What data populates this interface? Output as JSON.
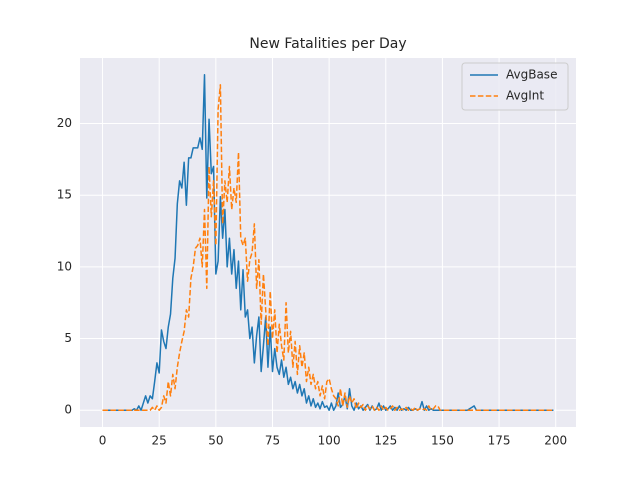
{
  "chart_data": {
    "type": "line",
    "title": "New Fatalities per Day",
    "x": [
      0,
      1,
      2,
      3,
      4,
      5,
      6,
      7,
      8,
      9,
      10,
      11,
      12,
      13,
      14,
      15,
      16,
      17,
      18,
      19,
      20,
      21,
      22,
      23,
      24,
      25,
      26,
      27,
      28,
      29,
      30,
      31,
      32,
      33,
      34,
      35,
      36,
      37,
      38,
      39,
      40,
      41,
      42,
      43,
      44,
      45,
      46,
      47,
      48,
      49,
      50,
      51,
      52,
      53,
      54,
      55,
      56,
      57,
      58,
      59,
      60,
      61,
      62,
      63,
      64,
      65,
      66,
      67,
      68,
      69,
      70,
      71,
      72,
      73,
      74,
      75,
      76,
      77,
      78,
      79,
      80,
      81,
      82,
      83,
      84,
      85,
      86,
      87,
      88,
      89,
      90,
      91,
      92,
      93,
      94,
      95,
      96,
      97,
      98,
      99,
      100,
      101,
      102,
      103,
      104,
      105,
      106,
      107,
      108,
      109,
      110,
      111,
      112,
      113,
      114,
      115,
      116,
      117,
      118,
      119,
      120,
      121,
      122,
      123,
      124,
      125,
      126,
      127,
      128,
      129,
      130,
      131,
      132,
      133,
      134,
      135,
      136,
      137,
      138,
      139,
      140,
      141,
      142,
      143,
      144,
      145,
      146,
      147,
      148,
      149,
      150,
      151,
      152,
      153,
      154,
      155,
      156,
      157,
      158,
      159,
      160,
      161,
      162,
      163,
      164,
      165,
      166,
      167,
      168,
      169,
      170,
      171,
      172,
      173,
      174,
      175,
      176,
      177,
      178,
      179,
      180,
      181,
      182,
      183,
      184,
      185,
      186,
      187,
      188,
      189,
      190,
      191,
      192,
      193,
      194,
      195,
      196,
      197,
      198,
      199
    ],
    "series": [
      {
        "name": "AvgBase",
        "color": "#1f77b4",
        "dash": false,
        "values": [
          0,
          0,
          0,
          0,
          0,
          0,
          0,
          0,
          0,
          0,
          0,
          0,
          0,
          0,
          0.1,
          0,
          0.3,
          0,
          0.5,
          1.0,
          0.5,
          1.0,
          0.8,
          2.0,
          3.3,
          2.6,
          5.6,
          4.8,
          4.3,
          5.8,
          6.7,
          9.2,
          10.6,
          14.4,
          16.0,
          15.5,
          17.3,
          14.3,
          17.6,
          17.6,
          18.3,
          18.3,
          18.3,
          19.0,
          18.2,
          23.4,
          14.8,
          20.3,
          16.5,
          17.0,
          9.5,
          10.4,
          14.9,
          12.0,
          14.0,
          10.0,
          12.0,
          9.5,
          11.2,
          8.5,
          10.4,
          7.0,
          9.8,
          6.5,
          7.0,
          5.0,
          5.8,
          3.3,
          5.2,
          6.5,
          2.7,
          4.5,
          6.5,
          3.0,
          5.8,
          2.7,
          4.3,
          3.0,
          2.5,
          3.5,
          2.3,
          3.0,
          1.8,
          2.3,
          1.5,
          2.0,
          1.2,
          1.8,
          1.0,
          1.5,
          0.5,
          1.0,
          0.3,
          0.8,
          0.2,
          0.5,
          0.1,
          0.6,
          0.2,
          0.3,
          0,
          0.5,
          0,
          0.3,
          1.2,
          0.2,
          0.4,
          1.0,
          0.1,
          1.5,
          0.3,
          0,
          0.5,
          0.1,
          0.3,
          0,
          0.2,
          0.4,
          0,
          0.3,
          0,
          0.1,
          0.5,
          0,
          0.3,
          0,
          0.1,
          0.3,
          0,
          0.2,
          0,
          0.3,
          0,
          0.1,
          0,
          0.2,
          0,
          0,
          0.1,
          0,
          0.1,
          0.6,
          0,
          0.3,
          0,
          0.1,
          0,
          0,
          0,
          0,
          0,
          0,
          0,
          0,
          0,
          0,
          0,
          0,
          0,
          0,
          0,
          0,
          0.1,
          0.2,
          0.3,
          0,
          0,
          0,
          0,
          0,
          0,
          0,
          0,
          0,
          0,
          0,
          0,
          0,
          0,
          0,
          0,
          0,
          0,
          0,
          0,
          0,
          0,
          0,
          0,
          0,
          0,
          0,
          0,
          0,
          0,
          0,
          0,
          0,
          0,
          0
        ]
      },
      {
        "name": "AvgInt",
        "color": "#ff7f0e",
        "dash": true,
        "values": [
          0,
          0,
          0,
          0,
          0,
          0,
          0,
          0,
          0,
          0,
          0,
          0,
          0,
          0,
          0,
          0,
          0,
          0,
          0,
          0,
          0,
          0,
          0.2,
          0,
          0.3,
          0,
          0.2,
          1.0,
          0.5,
          2.0,
          1.0,
          2.5,
          1.5,
          3.0,
          4.0,
          4.8,
          5.5,
          7.0,
          6.5,
          9.2,
          10.0,
          11.3,
          11.5,
          12.0,
          10.0,
          14.0,
          8.5,
          17.0,
          13.5,
          16.0,
          11.5,
          21.0,
          22.7,
          13.0,
          16.0,
          14.5,
          17.0,
          14.0,
          15.5,
          14.5,
          18.0,
          12.0,
          11.5,
          12.0,
          9.0,
          10.5,
          11.0,
          13.0,
          8.5,
          10.5,
          6.0,
          9.5,
          7.0,
          4.5,
          8.3,
          5.0,
          7.0,
          4.0,
          6.0,
          4.5,
          3.5,
          7.5,
          4.0,
          5.5,
          3.0,
          4.8,
          2.5,
          4.5,
          3.0,
          4.0,
          2.0,
          3.0,
          1.8,
          2.5,
          1.5,
          2.0,
          1.0,
          1.7,
          0.8,
          2.0,
          2.2,
          1.5,
          1.0,
          0.8,
          0.3,
          1.5,
          0.3,
          1.2,
          0.2,
          1.0,
          0.5,
          0.8,
          0.1,
          0.5,
          0.2,
          0.4,
          0,
          0.3,
          0.1,
          0.3,
          0,
          0.2,
          0,
          0.3,
          0,
          0.2,
          0,
          0.1,
          0.3,
          0,
          0.2,
          0,
          0.1,
          0,
          0.2,
          0,
          0.1,
          0,
          0.2,
          0,
          0.1,
          0,
          0.1,
          0,
          0.3,
          0,
          0.1,
          0.3,
          0.3,
          0,
          0,
          0,
          0,
          0,
          0,
          0,
          0,
          0,
          0,
          0,
          0,
          0,
          0,
          0,
          0,
          0,
          0,
          0,
          0,
          0,
          0,
          0,
          0,
          0,
          0,
          0,
          0,
          0,
          0,
          0,
          0,
          0,
          0,
          0,
          0,
          0,
          0,
          0,
          0,
          0,
          0,
          0,
          0,
          0,
          0,
          0,
          0,
          0,
          0,
          0
        ]
      }
    ],
    "xlim": [
      -9.95,
      208.95
    ],
    "ylim": [
      -1.17,
      24.57
    ],
    "xticks": [
      0,
      25,
      50,
      75,
      100,
      125,
      150,
      175,
      200
    ],
    "yticks": [
      0,
      5,
      10,
      15,
      20
    ],
    "grid": true,
    "legend": "upper right"
  }
}
